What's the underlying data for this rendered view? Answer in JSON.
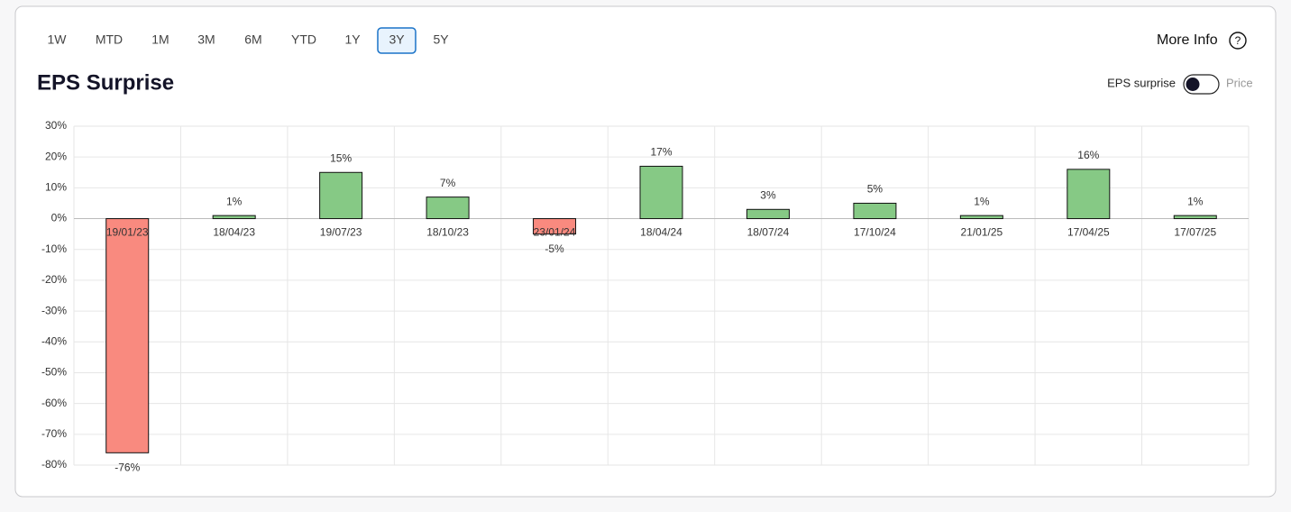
{
  "tabs": [
    "1W",
    "MTD",
    "1M",
    "3M",
    "6M",
    "YTD",
    "1Y",
    "3Y",
    "5Y"
  ],
  "active_tab": 7,
  "more_info": "More Info",
  "help_icon": "?",
  "toggle": {
    "left_label": "EPS surprise",
    "right_label": "Price"
  },
  "chart_data": {
    "type": "bar",
    "title": "EPS Surprise",
    "categories": [
      "19/01/23",
      "18/04/23",
      "19/07/23",
      "18/10/23",
      "23/01/24",
      "18/04/24",
      "18/07/24",
      "17/10/24",
      "21/01/25",
      "17/04/25",
      "17/07/25"
    ],
    "values": [
      -76,
      1,
      15,
      7,
      -5,
      17,
      3,
      5,
      1,
      16,
      1
    ],
    "value_labels": [
      "-76%",
      "1%",
      "15%",
      "7%",
      "-5%",
      "17%",
      "3%",
      "5%",
      "1%",
      "16%",
      "1%"
    ],
    "positive_color": "#86c985",
    "negative_color": "#f98a7f",
    "ylim": [
      -80,
      30
    ],
    "yticks": [
      {
        "value": 30,
        "label": "30%"
      },
      {
        "value": 20,
        "label": "20%"
      },
      {
        "value": 10,
        "label": "10%"
      },
      {
        "value": 0,
        "label": "0%"
      },
      {
        "value": -10,
        "label": "-10%"
      },
      {
        "value": -20,
        "label": "-20%"
      },
      {
        "value": -30,
        "label": "-30%"
      },
      {
        "value": -40,
        "label": "-40%"
      },
      {
        "value": -50,
        "label": "-50%"
      },
      {
        "value": -60,
        "label": "-60%"
      },
      {
        "value": -70,
        "label": "-70%"
      },
      {
        "value": -80,
        "label": "-80%"
      }
    ],
    "grid": true
  }
}
